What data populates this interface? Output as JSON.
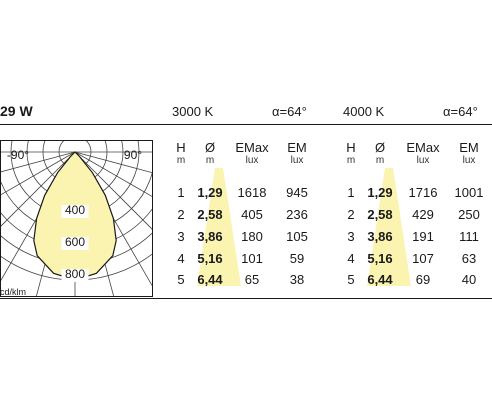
{
  "title": "29 W",
  "blocks": [
    {
      "cct": "3000 K",
      "alpha": "α=64°",
      "rows": [
        {
          "h": "1",
          "d": "1,29",
          "emax": "1618",
          "em": "945"
        },
        {
          "h": "2",
          "d": "2,58",
          "emax": "405",
          "em": "236"
        },
        {
          "h": "3",
          "d": "3,86",
          "emax": "180",
          "em": "105"
        },
        {
          "h": "4",
          "d": "5,16",
          "emax": "101",
          "em": "59"
        },
        {
          "h": "5",
          "d": "6,44",
          "emax": "65",
          "em": "38"
        }
      ]
    },
    {
      "cct": "4000 K",
      "alpha": "α=64°",
      "rows": [
        {
          "h": "1",
          "d": "1,29",
          "emax": "1716",
          "em": "1001"
        },
        {
          "h": "2",
          "d": "2,58",
          "emax": "429",
          "em": "250"
        },
        {
          "h": "3",
          "d": "3,86",
          "emax": "191",
          "em": "111"
        },
        {
          "h": "4",
          "d": "5,16",
          "emax": "107",
          "em": "63"
        },
        {
          "h": "5",
          "d": "6,44",
          "emax": "69",
          "em": "40"
        }
      ]
    }
  ],
  "columns": [
    {
      "label": "H",
      "unit": "m"
    },
    {
      "label": "Ø",
      "unit": "m"
    },
    {
      "label": "EMax",
      "unit": "lux"
    },
    {
      "label": "EM",
      "unit": "lux"
    }
  ],
  "polar": {
    "angle_labels": [
      "-90°",
      "90°"
    ],
    "ring_labels": [
      "400",
      "600",
      "800"
    ],
    "unit": "cd/klm"
  },
  "colors": {
    "fill": "#fbf3b0",
    "stroke": "#1a1a1a",
    "grid": "#444444"
  },
  "chart_data": {
    "type": "polar",
    "title": "",
    "unit": "cd/klm",
    "radial_ticks": [
      400,
      600,
      800
    ],
    "angle_ticks_deg": [
      -90,
      90
    ],
    "beam_angle_deg": 64,
    "series": [
      {
        "curve": [
          {
            "angle_deg": 0,
            "value": 800
          },
          {
            "angle_deg": 10,
            "value": 770
          },
          {
            "angle_deg": 20,
            "value": 690
          },
          {
            "angle_deg": 25,
            "value": 610
          },
          {
            "angle_deg": 30,
            "value": 480
          },
          {
            "angle_deg": 35,
            "value": 330
          },
          {
            "angle_deg": 40,
            "value": 170
          },
          {
            "angle_deg": 45,
            "value": 40
          },
          {
            "angle_deg": 50,
            "value": 0
          }
        ]
      }
    ]
  }
}
